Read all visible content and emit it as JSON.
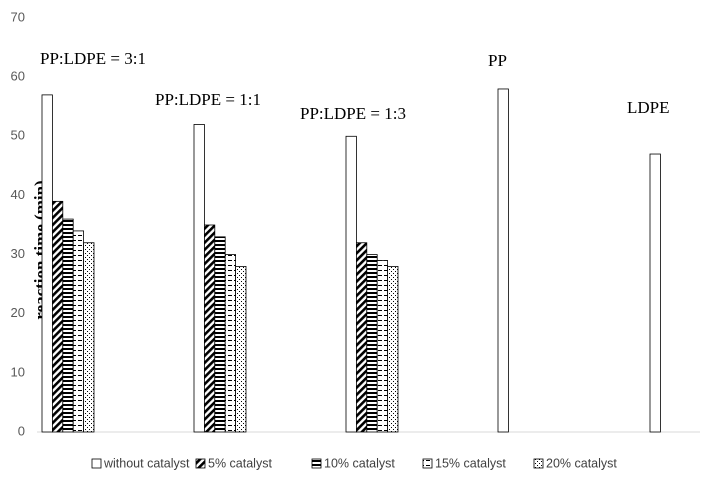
{
  "chart_data": {
    "type": "bar",
    "y_label": "reaction time (min)",
    "categories": [
      "PP:LDPE = 3:1",
      "PP:LDPE = 1:1",
      "PP:LDPE = 1:3",
      "PP",
      "LDPE"
    ],
    "series": [
      {
        "name": "without catalyst",
        "color": "#000000",
        "values": [
          57,
          52,
          50,
          58,
          47
        ]
      },
      {
        "name": "5% catalyst",
        "color": "#000000",
        "values": [
          39,
          35,
          32,
          null,
          null
        ]
      },
      {
        "name": "10% catalyst",
        "color": "#000000",
        "values": [
          36,
          33,
          30,
          null,
          null
        ]
      },
      {
        "name": "15% catalyst",
        "color": "#000000",
        "values": [
          34,
          30,
          29,
          null,
          null
        ]
      },
      {
        "name": "20% catalyst",
        "color": "#000000",
        "values": [
          32,
          28,
          28,
          null,
          null
        ]
      }
    ],
    "ylim": [
      0,
      70
    ],
    "yticks": [
      0,
      10,
      20,
      30,
      40,
      50,
      60,
      70
    ],
    "grid": false
  }
}
